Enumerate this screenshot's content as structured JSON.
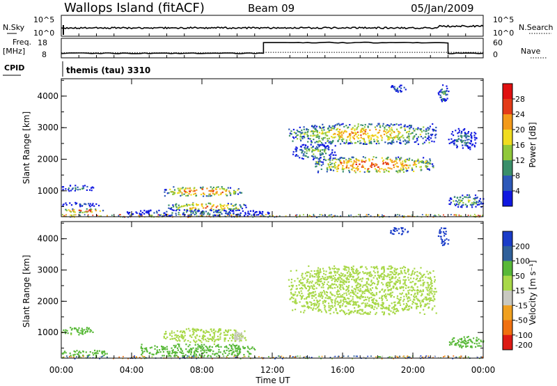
{
  "header": {
    "station": "Wallops Island (fitACF)",
    "beam": "Beam 09",
    "date": "05/Jan/2009"
  },
  "strips": {
    "nsky_label": "N.Sky",
    "nsky_ticks": [
      "10^5",
      "10^0"
    ],
    "nsearch_label": "N.Search",
    "nsearch_ticks": [
      "10^5",
      "10^0"
    ],
    "freq_label": "Freq.",
    "freq_unit": "[MHz]",
    "freq_ticks": [
      "18",
      "8"
    ],
    "nave_label": "Nave",
    "nave_ticks": [
      "60",
      "0"
    ],
    "cpid_label": "CPID",
    "cpid_value": "themis (tau) 3310"
  },
  "panels": {
    "power": {
      "ylabel": "Slant Range [km]",
      "cbar_label": "Power [dB]",
      "cbar_ticks": [
        "28",
        "24",
        "20",
        "16",
        "12",
        "8",
        "4"
      ]
    },
    "velocity": {
      "ylabel": "Slant Range [km]",
      "cbar_label": "Velocity [m s⁻¹]",
      "cbar_ticks": [
        "200",
        "100",
        "50",
        "15",
        "-15",
        "-50",
        "-100",
        "-200"
      ]
    },
    "xlabel": "Time UT",
    "xticks": [
      "00:00",
      "04:00",
      "08:00",
      "12:00",
      "16:00",
      "20:00",
      "00:00"
    ],
    "yticks": [
      "1000",
      "2000",
      "3000",
      "4000"
    ]
  },
  "chart_data": {
    "type": "heatmap",
    "title": "Wallops Island (fitACF)",
    "x_range_hours": [
      0,
      24
    ],
    "y_range_km": [
      180,
      4550
    ],
    "power_colorscale_db": [
      4,
      8,
      12,
      16,
      20,
      24,
      28
    ],
    "velocity_colorscale_ms": [
      -200,
      -100,
      -50,
      -15,
      15,
      50,
      100,
      200
    ],
    "colors": {
      "power": [
        "#1018e0",
        "#2d58b8",
        "#3a8f6a",
        "#90c83a",
        "#f0dc20",
        "#f39a1a",
        "#e33b18",
        "#e01010"
      ],
      "velocity": [
        "#dd1a14",
        "#f07010",
        "#f0a020",
        "#c8c8c0",
        "#a8d848",
        "#58b838",
        "#30609a",
        "#1a3cc8"
      ]
    },
    "frequency_mhz": {
      "segments": [
        {
          "x": [
            0,
            11.5
          ],
          "value": 10.3
        },
        {
          "x": [
            11.5,
            22
          ],
          "value": 15.8
        },
        {
          "x": [
            22,
            24
          ],
          "value": 10.3
        }
      ]
    },
    "power_regions": [
      {
        "x": [
          0,
          2.4
        ],
        "y": [
          330,
          460
        ],
        "db": 26
      },
      {
        "x": [
          0,
          2.2
        ],
        "y": [
          520,
          650
        ],
        "db": 8
      },
      {
        "x": [
          0,
          1.8
        ],
        "y": [
          1000,
          1200
        ],
        "db": 12
      },
      {
        "x": [
          5.8,
          10.3
        ],
        "y": [
          850,
          1150
        ],
        "db": 26
      },
      {
        "x": [
          6,
          10.5
        ],
        "y": [
          380,
          650
        ],
        "db": 24
      },
      {
        "x": [
          3.5,
          11.8
        ],
        "y": [
          230,
          420
        ],
        "db": 10
      },
      {
        "x": [
          12.9,
          21.3
        ],
        "y": [
          2500,
          3150
        ],
        "db": 22
      },
      {
        "x": [
          14.4,
          21.2
        ],
        "y": [
          1600,
          2100
        ],
        "db": 26
      },
      {
        "x": [
          13.1,
          15.6
        ],
        "y": [
          2000,
          2500
        ],
        "db": 14
      },
      {
        "x": [
          18.6,
          19.8
        ],
        "y": [
          4150,
          4380
        ],
        "db": 10
      },
      {
        "x": [
          21.4,
          22
        ],
        "y": [
          3800,
          4400
        ],
        "db": 12
      },
      {
        "x": [
          22,
          23.6
        ],
        "y": [
          2300,
          3000
        ],
        "db": 10
      },
      {
        "x": [
          22,
          24
        ],
        "y": [
          500,
          900
        ],
        "db": 16
      }
    ],
    "velocity_regions": [
      {
        "x": [
          0,
          2.6
        ],
        "y": [
          250,
          460
        ],
        "ms": 30
      },
      {
        "x": [
          0,
          1.8
        ],
        "y": [
          950,
          1200
        ],
        "ms": 30
      },
      {
        "x": [
          5.8,
          10.5
        ],
        "y": [
          700,
          1150
        ],
        "ms": 0
      },
      {
        "x": [
          9.8,
          10.3
        ],
        "y": [
          700,
          1050
        ],
        "ms": -30
      },
      {
        "x": [
          4.5,
          11
        ],
        "y": [
          250,
          650
        ],
        "ms": 30
      },
      {
        "x": [
          12.9,
          21.3
        ],
        "y": [
          1600,
          3150
        ],
        "ms": 0
      },
      {
        "x": [
          18.6,
          19.8
        ],
        "y": [
          4150,
          4380
        ],
        "ms": 150
      },
      {
        "x": [
          21.4,
          22
        ],
        "y": [
          3800,
          4400
        ],
        "ms": 150
      },
      {
        "x": [
          22,
          24
        ],
        "y": [
          500,
          900
        ],
        "ms": 30
      }
    ]
  }
}
